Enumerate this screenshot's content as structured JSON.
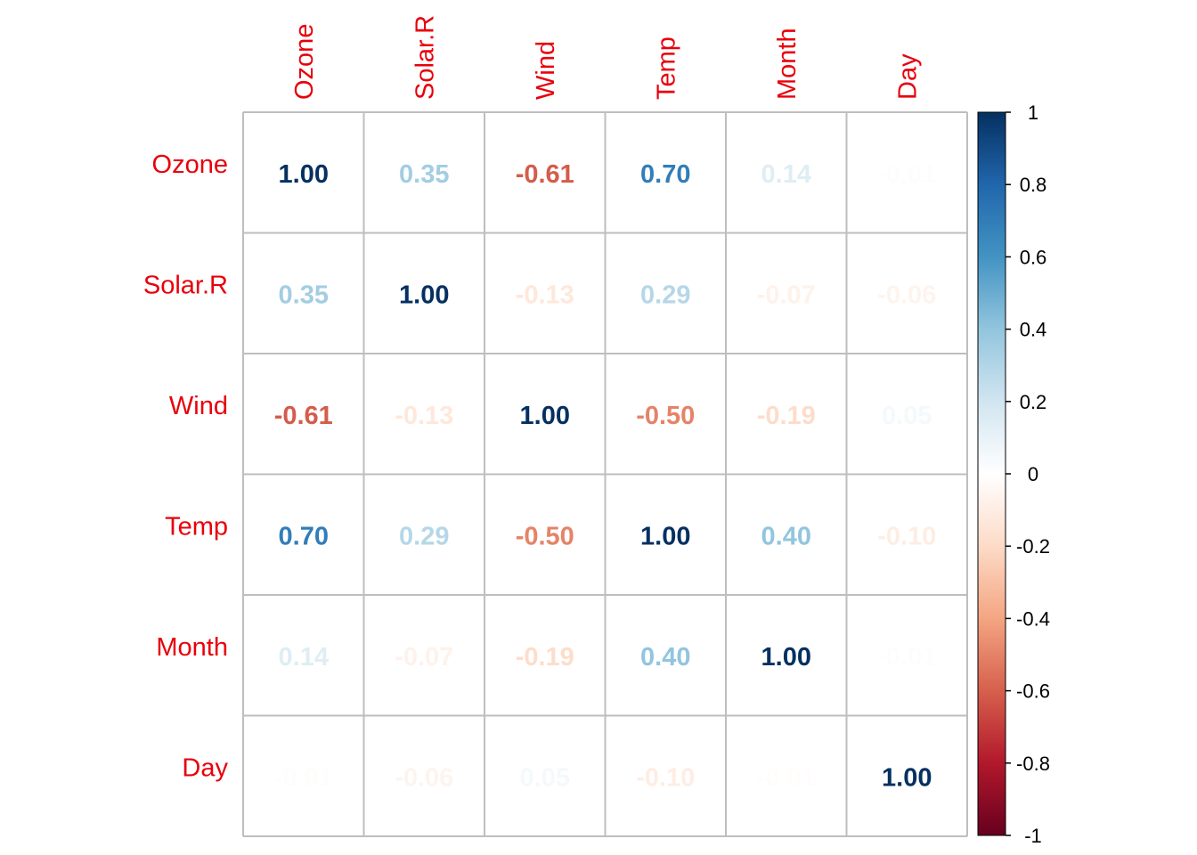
{
  "chart_data": {
    "type": "heatmap",
    "variables": [
      "Ozone",
      "Solar.R",
      "Wind",
      "Temp",
      "Month",
      "Day"
    ],
    "matrix": [
      [
        1.0,
        0.35,
        -0.61,
        0.7,
        0.14,
        -0.01
      ],
      [
        0.35,
        1.0,
        -0.13,
        0.29,
        -0.07,
        -0.06
      ],
      [
        -0.61,
        -0.13,
        1.0,
        -0.5,
        -0.19,
        0.05
      ],
      [
        0.7,
        0.29,
        -0.5,
        1.0,
        0.4,
        -0.1
      ],
      [
        0.14,
        -0.07,
        -0.19,
        0.4,
        1.0,
        -0.01
      ],
      [
        -0.01,
        -0.06,
        0.05,
        -0.1,
        -0.01,
        1.0
      ]
    ],
    "cell_labels": [
      [
        "1.00",
        "0.35",
        "-0.61",
        "0.70",
        "0.14",
        "-0.01"
      ],
      [
        "0.35",
        "1.00",
        "-0.13",
        "0.29",
        "-0.07",
        "-0.06"
      ],
      [
        "-0.61",
        "-0.13",
        "1.00",
        "-0.50",
        "-0.19",
        "0.05"
      ],
      [
        "0.70",
        "0.29",
        "-0.50",
        "1.00",
        "0.40",
        "-0.10"
      ],
      [
        "0.14",
        "-0.07",
        "-0.19",
        "0.40",
        "1.00",
        "-0.01"
      ],
      [
        "-0.01",
        "-0.06",
        "0.05",
        "-0.10",
        "-0.01",
        "1.00"
      ]
    ],
    "color_scale": {
      "range": [
        -1,
        1
      ],
      "ticks": [
        "1",
        "0.8",
        "0.6",
        "0.4",
        "0.2",
        "0",
        "-0.2",
        "-0.4",
        "-0.6",
        "-0.8",
        "-1"
      ],
      "colors": [
        "#67001F",
        "#B2182B",
        "#D6604D",
        "#F4A582",
        "#FDDBC7",
        "#FFFFFF",
        "#D1E5F0",
        "#92C5DE",
        "#4393C3",
        "#2166AC",
        "#053061"
      ]
    },
    "label_color": "#E8000B",
    "grid_color": "#BEBEBE",
    "title": "",
    "xlabel": "",
    "ylabel": ""
  }
}
